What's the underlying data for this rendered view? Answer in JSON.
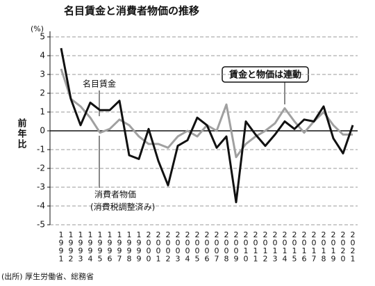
{
  "chart_data": {
    "type": "line",
    "title": "名目賃金と消費者物価の推移",
    "ylabel": "前年比",
    "yunit": "(%)",
    "categories": [
      "1991",
      "1992",
      "1993",
      "1994",
      "1995",
      "1996",
      "1997",
      "1998",
      "1999",
      "2000",
      "2001",
      "2002",
      "2003",
      "2004",
      "2005",
      "2006",
      "2007",
      "2008",
      "2009",
      "2010",
      "2011",
      "2012",
      "2013",
      "2014",
      "2015",
      "2016",
      "2017",
      "2018",
      "2019",
      "2020",
      "2021"
    ],
    "series": [
      {
        "name": "名目賃金",
        "color": "#111111",
        "values": [
          4.4,
          1.7,
          0.3,
          1.5,
          1.1,
          1.1,
          1.6,
          -1.3,
          -1.5,
          0.1,
          -1.6,
          -2.9,
          -0.8,
          -0.5,
          0.7,
          0.3,
          -0.9,
          -0.3,
          -3.8,
          0.5,
          -0.2,
          -0.8,
          -0.2,
          0.5,
          0.1,
          0.6,
          0.5,
          1.3,
          -0.4,
          -1.2,
          0.3
        ]
      },
      {
        "name": "消費者物価",
        "color": "#a0a0a0",
        "values": [
          3.3,
          1.7,
          1.3,
          0.7,
          -0.1,
          0.1,
          0.6,
          0.3,
          -0.3,
          -0.7,
          -0.7,
          -0.9,
          -0.3,
          0.0,
          -0.3,
          0.3,
          0.0,
          1.4,
          -1.4,
          -0.7,
          -0.3,
          0.0,
          0.4,
          1.2,
          0.5,
          -0.1,
          0.5,
          1.0,
          0.3,
          -0.2,
          -0.2
        ]
      }
    ],
    "annotations": [
      "(消費税調整済み)",
      "賃金と物価は連動"
    ],
    "source": "(出所) 厚生労働省、総務省",
    "ylim": [
      -5,
      5
    ],
    "yticks": [
      -5,
      -4,
      -3,
      -2,
      -1,
      0,
      1,
      2,
      3,
      4,
      5
    ],
    "grid": true
  }
}
